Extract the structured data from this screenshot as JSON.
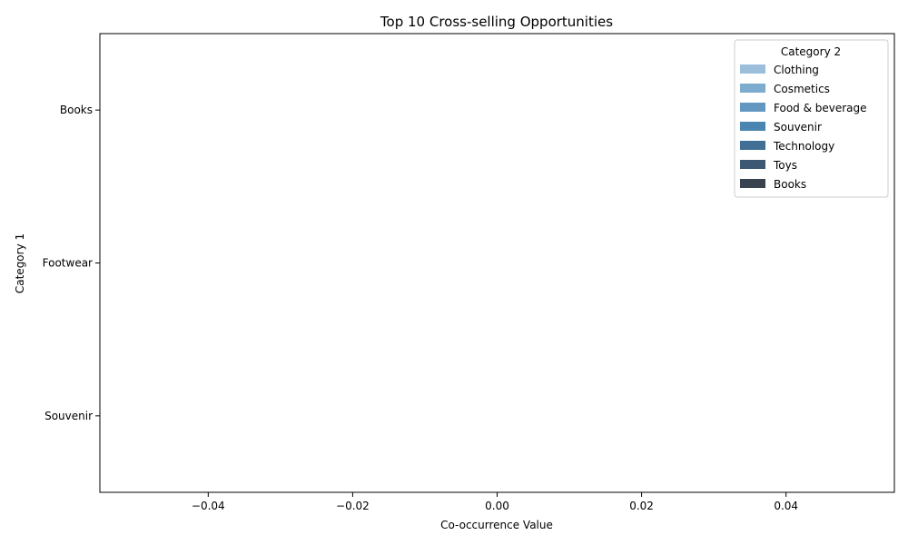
{
  "chart_data": {
    "type": "bar",
    "orientation": "horizontal",
    "title": "Top 10 Cross-selling Opportunities",
    "xlabel": "Co-occurrence Value",
    "ylabel": "Category 1",
    "categories": [
      "Books",
      "Footwear",
      "Souvenir"
    ],
    "xlim": [
      -0.055,
      0.055
    ],
    "xticks": [
      -0.04,
      -0.02,
      0.0,
      0.02,
      0.04
    ],
    "xtick_labels": [
      "−0.04",
      "−0.02",
      "0.00",
      "0.02",
      "0.04"
    ],
    "grid": false,
    "legend": {
      "title": "Category 2",
      "placement": "top-right",
      "entries": [
        {
          "name": "Clothing",
          "color": "#9bbfdb"
        },
        {
          "name": "Cosmetics",
          "color": "#7eacce"
        },
        {
          "name": "Food & beverage",
          "color": "#6197c0"
        },
        {
          "name": "Souvenir",
          "color": "#4a85b1"
        },
        {
          "name": "Technology",
          "color": "#426f95"
        },
        {
          "name": "Toys",
          "color": "#3d5873"
        },
        {
          "name": "Books",
          "color": "#38434f"
        }
      ]
    },
    "series": [
      {
        "name": "Clothing",
        "values": [
          0,
          0,
          0
        ]
      },
      {
        "name": "Cosmetics",
        "values": [
          0,
          0,
          0
        ]
      },
      {
        "name": "Food & beverage",
        "values": [
          0,
          0,
          0
        ]
      },
      {
        "name": "Souvenir",
        "values": [
          0,
          0,
          0
        ]
      },
      {
        "name": "Technology",
        "values": [
          0,
          0,
          0
        ]
      },
      {
        "name": "Toys",
        "values": [
          0,
          0,
          0
        ]
      },
      {
        "name": "Books",
        "values": [
          0,
          0,
          0
        ]
      }
    ]
  }
}
